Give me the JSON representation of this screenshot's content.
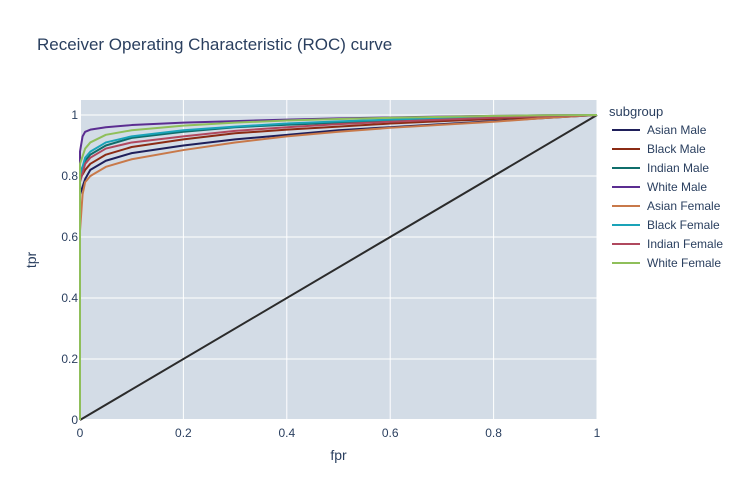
{
  "chart_data": {
    "type": "line",
    "title": "Receiver Operating Characteristic (ROC) curve",
    "xlabel": "fpr",
    "ylabel": "tpr",
    "xlim": [
      0,
      1
    ],
    "ylim": [
      0,
      1
    ],
    "x_ticks": [
      "0",
      "0.2",
      "0.4",
      "0.6",
      "0.8",
      "1"
    ],
    "y_ticks": [
      "0",
      "0.2",
      "0.4",
      "0.6",
      "0.8",
      "1"
    ],
    "grid": true,
    "legend_title": "subgroup",
    "legend_position": "right",
    "plot_bgcolor": "#d3dce6",
    "series": [
      {
        "name": "Asian Male",
        "color": "#1f1f5a",
        "points": [
          [
            0,
            0
          ],
          [
            0,
            0.74
          ],
          [
            0.01,
            0.79
          ],
          [
            0.02,
            0.82
          ],
          [
            0.05,
            0.85
          ],
          [
            0.1,
            0.875
          ],
          [
            0.2,
            0.9
          ],
          [
            0.3,
            0.92
          ],
          [
            0.4,
            0.935
          ],
          [
            0.5,
            0.95
          ],
          [
            0.6,
            0.96
          ],
          [
            0.7,
            0.97
          ],
          [
            0.8,
            0.98
          ],
          [
            0.9,
            0.99
          ],
          [
            1,
            1
          ]
        ]
      },
      {
        "name": "Black Male",
        "color": "#8b2b14",
        "points": [
          [
            0,
            0
          ],
          [
            0,
            0.79
          ],
          [
            0.01,
            0.82
          ],
          [
            0.02,
            0.84
          ],
          [
            0.05,
            0.87
          ],
          [
            0.1,
            0.895
          ],
          [
            0.2,
            0.92
          ],
          [
            0.3,
            0.94
          ],
          [
            0.4,
            0.952
          ],
          [
            0.5,
            0.962
          ],
          [
            0.6,
            0.972
          ],
          [
            0.7,
            0.98
          ],
          [
            0.8,
            0.987
          ],
          [
            0.9,
            0.994
          ],
          [
            1,
            1
          ]
        ]
      },
      {
        "name": "Indian Male",
        "color": "#0f6e6b",
        "points": [
          [
            0,
            0
          ],
          [
            0,
            0.81
          ],
          [
            0.01,
            0.85
          ],
          [
            0.02,
            0.87
          ],
          [
            0.05,
            0.9
          ],
          [
            0.1,
            0.925
          ],
          [
            0.2,
            0.945
          ],
          [
            0.3,
            0.96
          ],
          [
            0.4,
            0.968
          ],
          [
            0.5,
            0.975
          ],
          [
            0.6,
            0.982
          ],
          [
            0.7,
            0.987
          ],
          [
            0.8,
            0.992
          ],
          [
            0.9,
            0.996
          ],
          [
            1,
            1
          ]
        ]
      },
      {
        "name": "White Male",
        "color": "#5b2d91",
        "points": [
          [
            0,
            0
          ],
          [
            0,
            0.88
          ],
          [
            0.005,
            0.93
          ],
          [
            0.01,
            0.945
          ],
          [
            0.02,
            0.952
          ],
          [
            0.05,
            0.96
          ],
          [
            0.1,
            0.967
          ],
          [
            0.2,
            0.975
          ],
          [
            0.3,
            0.98
          ],
          [
            0.4,
            0.985
          ],
          [
            0.5,
            0.989
          ],
          [
            0.6,
            0.992
          ],
          [
            0.7,
            0.995
          ],
          [
            0.8,
            0.997
          ],
          [
            0.9,
            0.999
          ],
          [
            1,
            1
          ]
        ]
      },
      {
        "name": "Asian Female",
        "color": "#c8794a",
        "points": [
          [
            0,
            0
          ],
          [
            0,
            0.62
          ],
          [
            0.005,
            0.74
          ],
          [
            0.01,
            0.78
          ],
          [
            0.02,
            0.8
          ],
          [
            0.05,
            0.83
          ],
          [
            0.1,
            0.855
          ],
          [
            0.2,
            0.885
          ],
          [
            0.3,
            0.91
          ],
          [
            0.4,
            0.93
          ],
          [
            0.5,
            0.945
          ],
          [
            0.6,
            0.958
          ],
          [
            0.7,
            0.968
          ],
          [
            0.8,
            0.978
          ],
          [
            0.9,
            0.99
          ],
          [
            1,
            1
          ]
        ]
      },
      {
        "name": "Black Female",
        "color": "#1aa3b8",
        "points": [
          [
            0,
            0
          ],
          [
            0,
            0.8
          ],
          [
            0.01,
            0.86
          ],
          [
            0.02,
            0.88
          ],
          [
            0.05,
            0.91
          ],
          [
            0.1,
            0.93
          ],
          [
            0.2,
            0.95
          ],
          [
            0.3,
            0.962
          ],
          [
            0.4,
            0.972
          ],
          [
            0.5,
            0.979
          ],
          [
            0.6,
            0.985
          ],
          [
            0.7,
            0.99
          ],
          [
            0.8,
            0.994
          ],
          [
            0.9,
            0.997
          ],
          [
            1,
            1
          ]
        ]
      },
      {
        "name": "Indian Female",
        "color": "#b0485e",
        "points": [
          [
            0,
            0
          ],
          [
            0,
            0.78
          ],
          [
            0.01,
            0.84
          ],
          [
            0.02,
            0.86
          ],
          [
            0.05,
            0.89
          ],
          [
            0.1,
            0.91
          ],
          [
            0.2,
            0.93
          ],
          [
            0.3,
            0.948
          ],
          [
            0.4,
            0.96
          ],
          [
            0.5,
            0.97
          ],
          [
            0.6,
            0.978
          ],
          [
            0.7,
            0.985
          ],
          [
            0.8,
            0.991
          ],
          [
            0.9,
            0.996
          ],
          [
            1,
            1
          ]
        ]
      },
      {
        "name": "White Female",
        "color": "#8fbf5a",
        "points": [
          [
            0,
            0
          ],
          [
            0,
            0.84
          ],
          [
            0.01,
            0.89
          ],
          [
            0.02,
            0.91
          ],
          [
            0.05,
            0.935
          ],
          [
            0.1,
            0.95
          ],
          [
            0.2,
            0.965
          ],
          [
            0.3,
            0.975
          ],
          [
            0.4,
            0.982
          ],
          [
            0.5,
            0.987
          ],
          [
            0.6,
            0.991
          ],
          [
            0.7,
            0.994
          ],
          [
            0.8,
            0.997
          ],
          [
            0.9,
            0.999
          ],
          [
            1,
            1
          ]
        ]
      }
    ],
    "reference_line": {
      "color": "#2b2b2b",
      "points": [
        [
          0,
          0
        ],
        [
          1,
          1
        ]
      ]
    }
  }
}
